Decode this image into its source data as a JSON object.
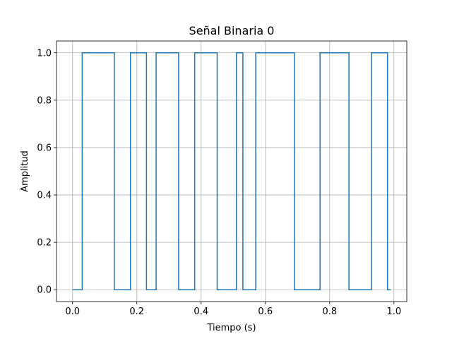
{
  "chart_data": {
    "type": "line",
    "step": "post",
    "title": "Señal Binaria 0",
    "xlabel": "Tiempo (s)",
    "ylabel": "Amplitud",
    "xlim": [
      -0.05,
      1.04
    ],
    "ylim": [
      -0.05,
      1.05
    ],
    "xticks": [
      0.0,
      0.2,
      0.4,
      0.6,
      0.8,
      1.0
    ],
    "xtick_labels": [
      "0.0",
      "0.2",
      "0.4",
      "0.6",
      "0.8",
      "1.0"
    ],
    "yticks": [
      0.0,
      0.2,
      0.4,
      0.6,
      0.8,
      1.0
    ],
    "ytick_labels": [
      "0.0",
      "0.2",
      "0.4",
      "0.6",
      "0.8",
      "1.0"
    ],
    "grid": true,
    "line_color": "#1f77b4",
    "series": [
      {
        "x": [
          0.0,
          0.03,
          0.13,
          0.18,
          0.23,
          0.26,
          0.33,
          0.38,
          0.45,
          0.51,
          0.53,
          0.57,
          0.69,
          0.77,
          0.86,
          0.93,
          0.98,
          0.99
        ],
        "y": [
          0,
          1,
          0,
          1,
          0,
          1,
          0,
          1,
          0,
          1,
          0,
          1,
          0,
          1,
          0,
          1,
          0,
          0
        ]
      }
    ]
  }
}
